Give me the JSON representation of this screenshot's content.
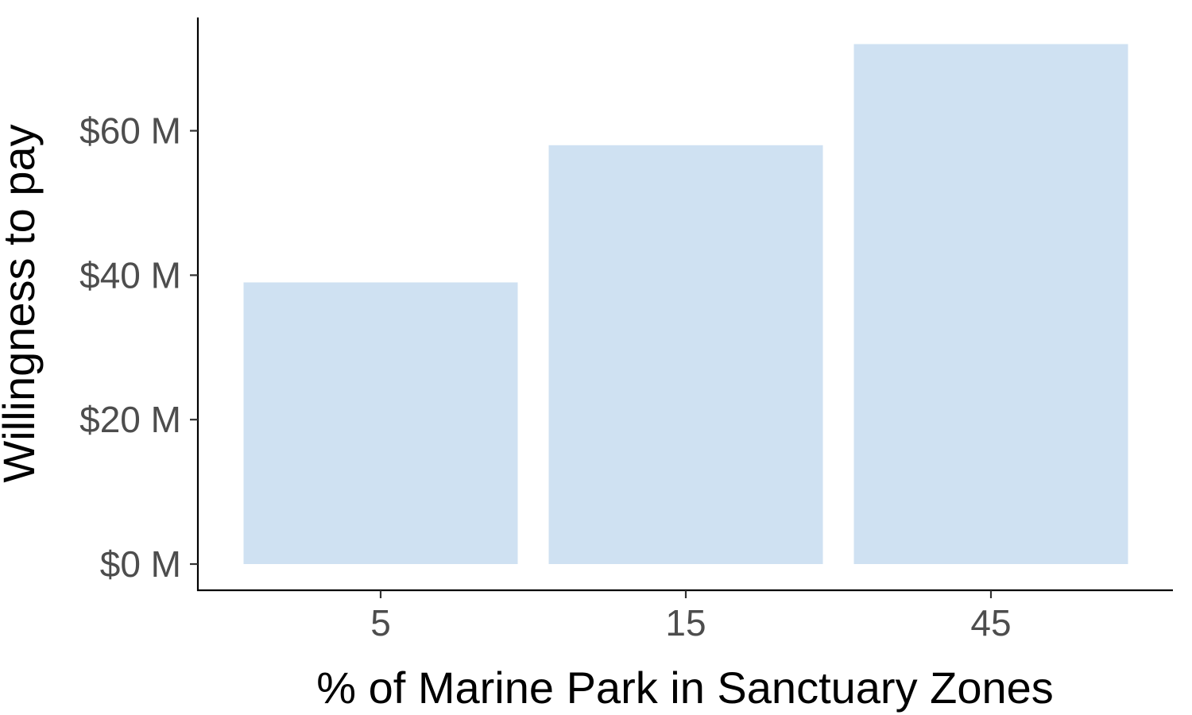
{
  "chart_data": {
    "type": "bar",
    "title": "",
    "xlabel": "% of Marine Park in Sanctuary Zones",
    "ylabel": "Willingness to pay",
    "categories": [
      "5",
      "15",
      "45"
    ],
    "values": [
      39,
      58,
      72
    ],
    "value_unit": "$ M",
    "ylim": [
      0,
      72
    ],
    "yticks": [
      0,
      20,
      40,
      60
    ],
    "ytick_labels": [
      "$0 M",
      "$20 M",
      "$40 M",
      "$60 M"
    ],
    "grid": false,
    "legend": "none",
    "colors": {
      "bar": "#cfe1f2",
      "axis": "#000000",
      "tick_text": "#4d4d4d",
      "title_text": "#000000"
    }
  }
}
